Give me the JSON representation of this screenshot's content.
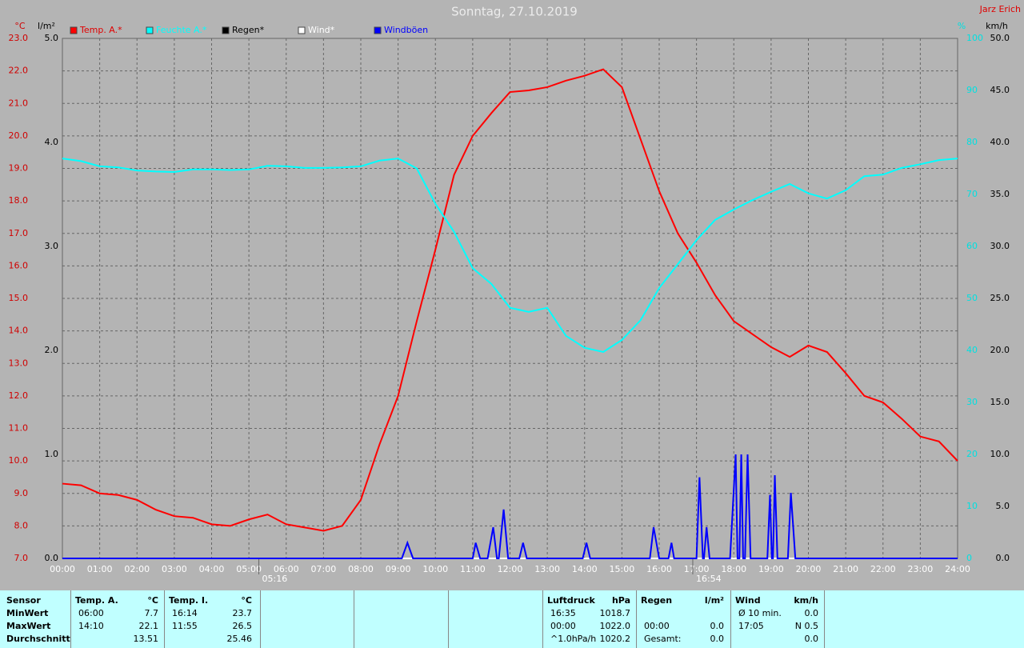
{
  "chart_data": {
    "type": "line",
    "title": "Sonntag, 27.10.2019",
    "author": "Jarz Erich",
    "y_unit": "°C",
    "y3_unit": "l/m²",
    "y2_unit": "%",
    "y4_unit": "km/h",
    "sunrise": "05:16",
    "sunset": "16:54",
    "xlim": [
      0,
      24
    ],
    "xticks": [
      {
        "value": 0,
        "label": "00:00"
      },
      {
        "value": 1,
        "label": "01:00"
      },
      {
        "value": 2,
        "label": "02:00"
      },
      {
        "value": 3,
        "label": "03:00"
      },
      {
        "value": 4,
        "label": "04:00"
      },
      {
        "value": 5,
        "label": "05:00"
      },
      {
        "value": 6,
        "label": "06:00"
      },
      {
        "value": 7,
        "label": "07:00"
      },
      {
        "value": 8,
        "label": "08:00"
      },
      {
        "value": 9,
        "label": "09:00"
      },
      {
        "value": 10,
        "label": "10:00"
      },
      {
        "value": 11,
        "label": "11:00"
      },
      {
        "value": 12,
        "label": "12:00"
      },
      {
        "value": 13,
        "label": "13:00"
      },
      {
        "value": 14,
        "label": "14:00"
      },
      {
        "value": 15,
        "label": "15:00"
      },
      {
        "value": 16,
        "label": "16:00"
      },
      {
        "value": 17,
        "label": "17:00"
      },
      {
        "value": 18,
        "label": "18:00"
      },
      {
        "value": 19,
        "label": "19:00"
      },
      {
        "value": 20,
        "label": "20:00"
      },
      {
        "value": 21,
        "label": "21:00"
      },
      {
        "value": 22,
        "label": "22:00"
      },
      {
        "value": 23,
        "label": "23:00"
      },
      {
        "value": 24,
        "label": "24:00"
      }
    ],
    "ylim": [
      7,
      23
    ],
    "yticks": [
      {
        "value": 7,
        "label": "7.0"
      },
      {
        "value": 8,
        "label": "8.0"
      },
      {
        "value": 9,
        "label": "9.0"
      },
      {
        "value": 10,
        "label": "10.0"
      },
      {
        "value": 11,
        "label": "11.0"
      },
      {
        "value": 12,
        "label": "12.0"
      },
      {
        "value": 13,
        "label": "13.0"
      },
      {
        "value": 14,
        "label": "14.0"
      },
      {
        "value": 15,
        "label": "15.0"
      },
      {
        "value": 16,
        "label": "16.0"
      },
      {
        "value": 17,
        "label": "17.0"
      },
      {
        "value": 18,
        "label": "18.0"
      },
      {
        "value": 19,
        "label": "19.0"
      },
      {
        "value": 20,
        "label": "20.0"
      },
      {
        "value": 21,
        "label": "21.0"
      },
      {
        "value": 22,
        "label": "22.0"
      },
      {
        "value": 23,
        "label": "23.0"
      }
    ],
    "y3lim": [
      0,
      5
    ],
    "y3ticks": [
      {
        "value": 0,
        "label": "0.0"
      },
      {
        "value": 1,
        "label": "1.0"
      },
      {
        "value": 2,
        "label": "2.0"
      },
      {
        "value": 3,
        "label": "3.0"
      },
      {
        "value": 4,
        "label": "4.0"
      },
      {
        "value": 5,
        "label": "5.0"
      }
    ],
    "y2lim": [
      0,
      100
    ],
    "y2ticks": [
      0,
      10,
      20,
      30,
      40,
      50,
      60,
      70,
      80,
      90,
      100
    ],
    "y4lim": [
      0,
      50
    ],
    "y4ticks": [
      {
        "value": 0,
        "label": "0.0"
      },
      {
        "value": 5,
        "label": "5.0"
      },
      {
        "value": 10,
        "label": "10.0"
      },
      {
        "value": 15,
        "label": "15.0"
      },
      {
        "value": 20,
        "label": "20.0"
      },
      {
        "value": 25,
        "label": "25.0"
      },
      {
        "value": 30,
        "label": "30.0"
      },
      {
        "value": 35,
        "label": "35.0"
      },
      {
        "value": 40,
        "label": "40.0"
      },
      {
        "value": 45,
        "label": "45.0"
      },
      {
        "value": 50,
        "label": "50.0"
      }
    ],
    "grid": true,
    "x": [
      0,
      0.5,
      1,
      1.5,
      2,
      2.5,
      3,
      3.5,
      4,
      4.5,
      5,
      5.5,
      6,
      6.5,
      7,
      7.5,
      8,
      8.5,
      9,
      9.5,
      10,
      10.5,
      11,
      11.5,
      12,
      12.5,
      13,
      13.5,
      14,
      14.5,
      15,
      15.5,
      16,
      16.5,
      17,
      17.5,
      18,
      18.5,
      19,
      19.5,
      20,
      20.5,
      21,
      21.5,
      22,
      22.5,
      23,
      23.5,
      24
    ],
    "series": [
      {
        "name": "Temp. A.*",
        "color": "#ff0000",
        "axis": "y",
        "values": [
          9.3,
          9.25,
          9.0,
          8.95,
          8.8,
          8.5,
          8.3,
          8.25,
          8.05,
          8.0,
          8.2,
          8.35,
          8.05,
          7.95,
          7.85,
          8.0,
          8.8,
          10.5,
          12.0,
          14.3,
          16.5,
          18.8,
          20.0,
          20.7,
          21.35,
          21.4,
          21.5,
          21.7,
          21.85,
          22.05,
          21.5,
          19.9,
          18.3,
          17.0,
          16.1,
          15.1,
          14.3,
          13.9,
          13.5,
          13.2,
          13.55,
          13.35,
          12.7,
          12.0,
          11.8,
          11.3,
          10.75,
          10.6,
          10.0
        ]
      },
      {
        "name": "Feuchte A.*",
        "color": "#00ffff",
        "axis": "y2",
        "values": [
          76.9,
          76.4,
          75.4,
          75.2,
          74.6,
          74.4,
          74.3,
          74.8,
          74.8,
          74.7,
          74.8,
          75.5,
          75.4,
          75.1,
          75.1,
          75.2,
          75.4,
          76.5,
          76.9,
          75.0,
          68.2,
          62.8,
          55.8,
          52.8,
          48.2,
          47.4,
          48.2,
          42.8,
          40.5,
          39.7,
          42.0,
          45.8,
          52.0,
          56.6,
          61.2,
          65.1,
          67.1,
          68.9,
          70.5,
          72.0,
          70.2,
          69.2,
          70.8,
          73.5,
          73.8,
          75.1,
          75.8,
          76.6,
          76.9
        ]
      },
      {
        "name": "Regen*",
        "color": "#000000",
        "axis": "y3",
        "x": [
          0,
          24
        ],
        "values": [
          0,
          0
        ]
      },
      {
        "name": "Wind*",
        "color": "#ffffff",
        "axis": "y4",
        "x": [
          0,
          24
        ],
        "values": [
          0,
          0
        ]
      },
      {
        "name": "Windböen",
        "color": "#0000ff",
        "axis": "y4",
        "x": [
          0,
          9.1,
          9.25,
          9.4,
          11.0,
          11.08,
          11.2,
          11.4,
          11.55,
          11.65,
          11.7,
          11.83,
          11.95,
          12.25,
          12.35,
          12.45,
          13.95,
          14.05,
          14.15,
          15.75,
          15.85,
          16.0,
          16.25,
          16.33,
          16.4,
          17.0,
          17.08,
          17.17,
          17.2,
          17.27,
          17.35,
          17.9,
          18.05,
          18.1,
          18.15,
          18.2,
          18.25,
          18.3,
          18.37,
          18.45,
          18.9,
          18.97,
          19.02,
          19.05,
          19.1,
          19.17,
          19.45,
          19.53,
          19.65,
          24
        ],
        "values": [
          0,
          0,
          1.5,
          0,
          0,
          1.5,
          0,
          0,
          3,
          0,
          0,
          4.7,
          0,
          0,
          1.5,
          0,
          0,
          1.5,
          0,
          0,
          3,
          0,
          0,
          1.5,
          0,
          0,
          7.8,
          0,
          0,
          3,
          0,
          0,
          10,
          0,
          0,
          10,
          0,
          0,
          10,
          0,
          0,
          6.1,
          0,
          0,
          8,
          0,
          0,
          6.3,
          0,
          0
        ]
      }
    ]
  },
  "table": {
    "row_labels": [
      "Sensor",
      "MinWert",
      "MaxWert",
      "Durchschnitt"
    ],
    "groups": [
      {
        "title": "Temp. A.",
        "unit": "°C",
        "rows": [
          [
            "06:00",
            "7.7"
          ],
          [
            "14:10",
            "22.1"
          ],
          [
            null,
            "13.51"
          ]
        ]
      },
      {
        "title": "Temp. I.",
        "unit": "°C",
        "rows": [
          [
            "16:14",
            "23.7"
          ],
          [
            "11:55",
            "26.5"
          ],
          [
            null,
            "25.46"
          ]
        ]
      },
      {
        "title": "Luftdruck",
        "unit": "hPa",
        "rows": [
          [
            "16:35",
            "1018.7"
          ],
          [
            "00:00",
            "1022.0"
          ],
          [
            "^1.0hPa/h",
            "1020.2"
          ]
        ]
      },
      {
        "title": "Regen",
        "unit": "l/m²",
        "rows": [
          [
            null,
            null
          ],
          [
            "00:00",
            "0.0"
          ],
          [
            "Gesamt:",
            "0.0"
          ]
        ]
      },
      {
        "title": "Wind",
        "unit": "km/h",
        "rows": [
          [
            "Ø 10 min.",
            "0.0"
          ],
          [
            "17:05",
            "N 0.5"
          ],
          [
            null,
            "0.0"
          ]
        ]
      }
    ]
  }
}
